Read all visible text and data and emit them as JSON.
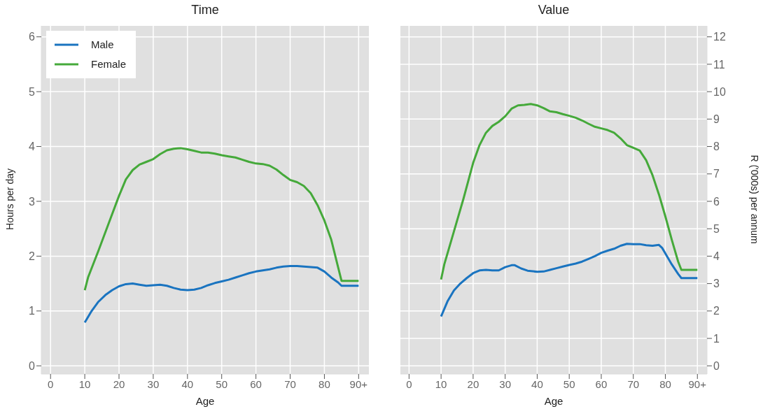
{
  "chart_data": [
    {
      "type": "line",
      "title": "Time",
      "xlabel": "Age",
      "ylabel": "Hours per day",
      "xlim": [
        -2.7,
        93
      ],
      "xticks": [
        0,
        10,
        20,
        30,
        40,
        50,
        60,
        70,
        80,
        {
          "value": 90,
          "label": "90+"
        }
      ],
      "ylim": [
        -0.15,
        6.2
      ],
      "yticks": [
        0,
        1,
        2,
        3,
        4,
        5,
        6
      ],
      "grid": true,
      "legend": "top left",
      "marker": "none",
      "line_style": "solid",
      "series": [
        {
          "name": "Male",
          "color": "#1a74c0",
          "x": [
            10,
            12,
            14,
            16,
            18,
            20,
            22,
            24,
            26,
            28,
            30,
            32,
            34,
            36,
            38,
            40,
            42,
            44,
            46,
            48,
            50,
            52,
            54,
            56,
            58,
            60,
            62,
            64,
            66,
            68,
            70,
            72,
            74,
            76,
            78,
            80,
            82,
            84,
            85,
            90
          ],
          "values": [
            0.79,
            1.0,
            1.17,
            1.29,
            1.38,
            1.45,
            1.49,
            1.5,
            1.48,
            1.46,
            1.47,
            1.48,
            1.46,
            1.42,
            1.39,
            1.38,
            1.39,
            1.42,
            1.47,
            1.51,
            1.54,
            1.57,
            1.61,
            1.65,
            1.69,
            1.72,
            1.74,
            1.76,
            1.79,
            1.81,
            1.82,
            1.82,
            1.81,
            1.8,
            1.79,
            1.72,
            1.61,
            1.52,
            1.46,
            1.46
          ]
        },
        {
          "name": "Female",
          "color": "#45a93a",
          "x": [
            10,
            11,
            14,
            17,
            20,
            22,
            24,
            26,
            28,
            30,
            32,
            34,
            36,
            38,
            40,
            42,
            44,
            46,
            48,
            50,
            52,
            54,
            56,
            58,
            60,
            62,
            64,
            66,
            68,
            70,
            72,
            74,
            76,
            78,
            80,
            82,
            84,
            85,
            90
          ],
          "values": [
            1.38,
            1.62,
            2.1,
            2.6,
            3.1,
            3.4,
            3.57,
            3.67,
            3.72,
            3.77,
            3.86,
            3.93,
            3.96,
            3.97,
            3.95,
            3.92,
            3.89,
            3.89,
            3.87,
            3.84,
            3.82,
            3.8,
            3.76,
            3.72,
            3.69,
            3.68,
            3.65,
            3.58,
            3.48,
            3.39,
            3.35,
            3.28,
            3.15,
            2.93,
            2.65,
            2.3,
            1.8,
            1.55,
            1.55
          ]
        }
      ]
    },
    {
      "type": "line",
      "title": "Value",
      "xlabel": "Age",
      "y2label": "R ('000s) per annum",
      "xlim": [
        -2.7,
        93
      ],
      "xticks": [
        0,
        10,
        20,
        30,
        40,
        50,
        60,
        70,
        80,
        {
          "value": 90,
          "label": "90+"
        }
      ],
      "y2lim": [
        -0.3,
        12.4
      ],
      "y2ticks": [
        0,
        1,
        2,
        3,
        4,
        5,
        6,
        7,
        8,
        9,
        10,
        11,
        12
      ],
      "grid": true,
      "marker": "none",
      "line_style": "solid",
      "series": [
        {
          "color": "#1a74c0",
          "axis": "y2",
          "x": [
            10,
            12,
            14,
            16,
            18,
            20,
            22,
            24,
            26,
            28,
            30,
            32,
            33,
            35,
            37,
            40,
            42,
            44,
            46,
            48,
            50,
            52,
            54,
            56,
            58,
            60,
            62,
            64,
            66,
            68,
            70,
            72,
            74,
            76,
            78,
            79,
            80,
            82,
            84,
            85,
            90
          ],
          "values": [
            1.8,
            2.35,
            2.75,
            3.0,
            3.2,
            3.38,
            3.48,
            3.5,
            3.48,
            3.48,
            3.6,
            3.67,
            3.67,
            3.55,
            3.47,
            3.43,
            3.44,
            3.5,
            3.56,
            3.62,
            3.68,
            3.73,
            3.8,
            3.9,
            4.0,
            4.12,
            4.2,
            4.27,
            4.38,
            4.45,
            4.44,
            4.44,
            4.4,
            4.38,
            4.41,
            4.3,
            4.1,
            3.7,
            3.35,
            3.2,
            3.2
          ]
        },
        {
          "color": "#45a93a",
          "axis": "y2",
          "x": [
            10,
            11,
            14,
            17,
            20,
            22,
            24,
            26,
            28,
            30,
            32,
            34,
            36,
            38,
            40,
            42,
            44,
            46,
            48,
            50,
            52,
            54,
            56,
            58,
            60,
            62,
            64,
            66,
            68,
            70,
            72,
            74,
            76,
            78,
            80,
            82,
            84,
            85,
            90
          ],
          "values": [
            3.15,
            3.7,
            4.9,
            6.1,
            7.4,
            8.05,
            8.5,
            8.75,
            8.9,
            9.1,
            9.38,
            9.5,
            9.52,
            9.55,
            9.5,
            9.4,
            9.28,
            9.25,
            9.18,
            9.12,
            9.05,
            8.95,
            8.83,
            8.72,
            8.66,
            8.6,
            8.5,
            8.3,
            8.05,
            7.95,
            7.85,
            7.5,
            6.95,
            6.25,
            5.45,
            4.6,
            3.8,
            3.5,
            3.5
          ]
        }
      ]
    }
  ]
}
